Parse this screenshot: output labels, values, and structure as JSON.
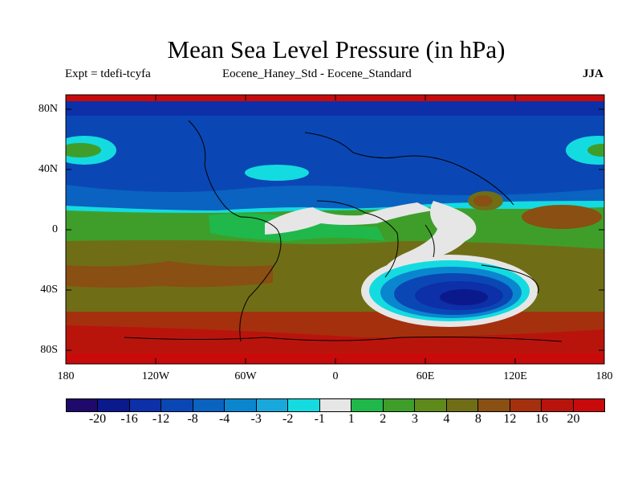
{
  "title": "Mean Sea Level Pressure (in hPa)",
  "subtitle_left": "Expt = tdefi-tcyfa",
  "subtitle_center": "Eocene_Haney_Std - Eocene_Standard",
  "season": "JJA",
  "y_ticks": [
    "80N",
    "40N",
    "0",
    "40S",
    "80S"
  ],
  "x_ticks": [
    "180",
    "120W",
    "60W",
    "0",
    "60E",
    "120E",
    "180"
  ],
  "colorbar": {
    "labels": [
      "-20",
      "-16",
      "-12",
      "-8",
      "-4",
      "-3",
      "-2",
      "-1",
      "1",
      "2",
      "3",
      "4",
      "8",
      "12",
      "16",
      "20"
    ],
    "colors": [
      "#1f0a6b",
      "#0a1a8c",
      "#0d2fa8",
      "#0a47b4",
      "#0a62c1",
      "#0a86cf",
      "#18a8dc",
      "#14dbe0",
      "#e6e6e6",
      "#20b84a",
      "#3f9e2a",
      "#5e8a1c",
      "#6f6e16",
      "#8a4f12",
      "#a5300e",
      "#b9140c",
      "#c80a0a"
    ]
  },
  "chart_data": {
    "type": "heatmap",
    "title": "Mean Sea Level Pressure (in hPa)",
    "units": "hPa",
    "lon_range": [
      -180,
      180
    ],
    "lat_range": [
      -90,
      90
    ],
    "contour_levels": [
      -20,
      -16,
      -12,
      -8,
      -4,
      -3,
      -2,
      -1,
      1,
      2,
      3,
      4,
      8,
      12,
      16,
      20
    ],
    "features": [
      {
        "region": "northern high latitudes (>30N)",
        "value_range": [
          -12,
          -4
        ]
      },
      {
        "region": "north pacific anomaly near 50N,160W",
        "value_range": [
          1,
          3
        ]
      },
      {
        "region": "tropics and southern mid-latitudes",
        "value_range": [
          3,
          8
        ]
      },
      {
        "region": "southern high latitudes (<60S)",
        "value_range": [
          8,
          16
        ]
      },
      {
        "region": "south indian ocean low near 45S,80E",
        "value_range": [
          -12,
          -4
        ]
      },
      {
        "region": "arabian/north india high near 20N,75E",
        "value_range": [
          8,
          12
        ]
      }
    ]
  }
}
